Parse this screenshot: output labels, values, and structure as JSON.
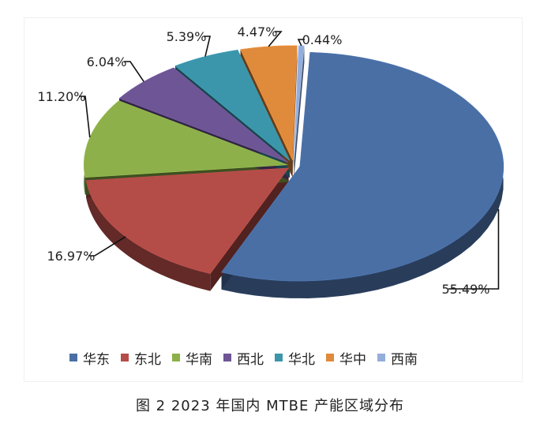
{
  "chart_data": {
    "type": "pie",
    "title": "",
    "caption": "图 2  2023 年国内 MTBE 产能区域分布",
    "legend_position": "bottom",
    "slices": [
      {
        "name": "华东",
        "value": 55.49,
        "label": "55.49%",
        "color": "#4a6fa5"
      },
      {
        "name": "东北",
        "value": 16.97,
        "label": "16.97%",
        "color": "#b44c48"
      },
      {
        "name": "华南",
        "value": 11.2,
        "label": "11.20%",
        "color": "#8db04a"
      },
      {
        "name": "西北",
        "value": 6.04,
        "label": "6.04%",
        "color": "#6e5595"
      },
      {
        "name": "华北",
        "value": 5.39,
        "label": "5.39%",
        "color": "#3b95ab"
      },
      {
        "name": "华中",
        "value": 4.47,
        "label": "4.47%",
        "color": "#e08a3c"
      },
      {
        "name": "西南",
        "value": 0.44,
        "label": "0.44%",
        "color": "#94aedb"
      }
    ]
  }
}
